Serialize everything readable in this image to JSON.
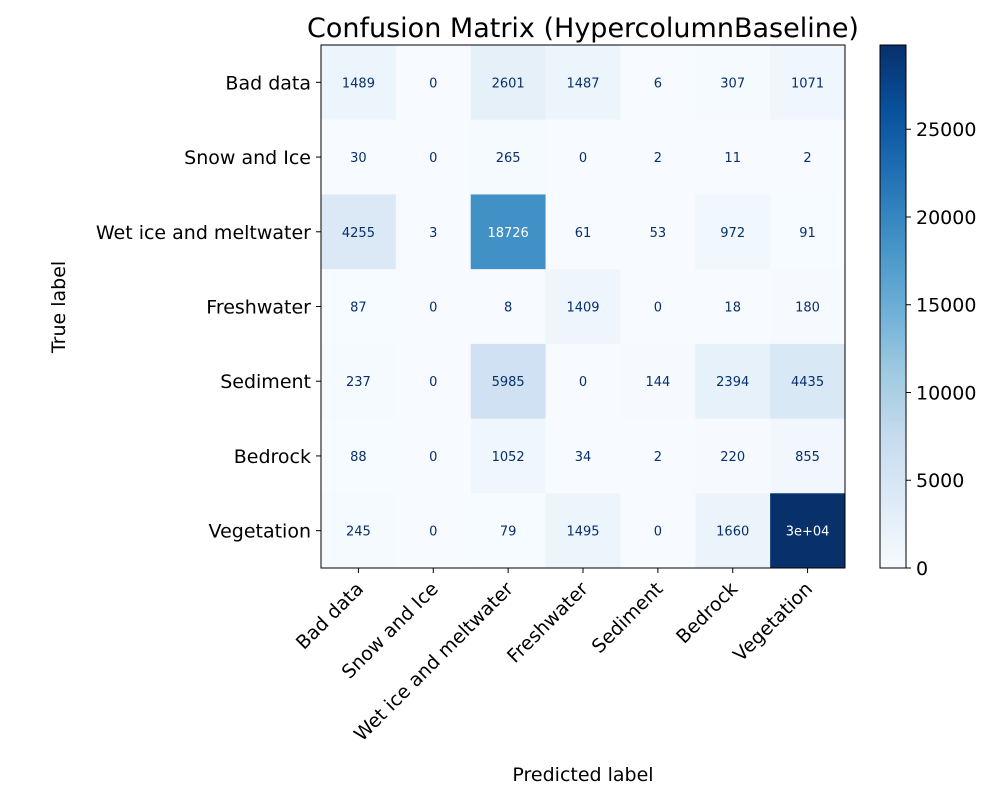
{
  "chart_data": {
    "type": "heatmap",
    "title": "Confusion Matrix (HypercolumnBaseline)",
    "xlabel": "Predicted label",
    "ylabel": "True label",
    "x_categories": [
      "Bad data",
      "Snow and Ice",
      "Wet ice and meltwater",
      "Freshwater",
      "Sediment",
      "Bedrock",
      "Vegetation"
    ],
    "y_categories": [
      "Bad data",
      "Snow and Ice",
      "Wet ice and meltwater",
      "Freshwater",
      "Sediment",
      "Bedrock",
      "Vegetation"
    ],
    "values": [
      [
        1489,
        0,
        2601,
        1487,
        6,
        307,
        1071
      ],
      [
        30,
        0,
        265,
        0,
        2,
        11,
        2
      ],
      [
        4255,
        3,
        18726,
        61,
        53,
        972,
        91
      ],
      [
        87,
        0,
        8,
        1409,
        0,
        18,
        180
      ],
      [
        237,
        0,
        5985,
        0,
        144,
        2394,
        4435
      ],
      [
        88,
        0,
        1052,
        34,
        2,
        220,
        855
      ],
      [
        245,
        0,
        79,
        1495,
        0,
        1660,
        29800
      ]
    ],
    "cell_labels": [
      [
        "1489",
        "0",
        "2601",
        "1487",
        "6",
        "307",
        "1071"
      ],
      [
        "30",
        "0",
        "265",
        "0",
        "2",
        "11",
        "2"
      ],
      [
        "4255",
        "3",
        "18726",
        "61",
        "53",
        "972",
        "91"
      ],
      [
        "87",
        "0",
        "8",
        "1409",
        "0",
        "18",
        "180"
      ],
      [
        "237",
        "0",
        "5985",
        "0",
        "144",
        "2394",
        "4435"
      ],
      [
        "88",
        "0",
        "1052",
        "34",
        "2",
        "220",
        "855"
      ],
      [
        "245",
        "0",
        "79",
        "1495",
        "0",
        "1660",
        "3e+04"
      ]
    ],
    "colormap": "Blues",
    "colorbar": {
      "range": [
        0,
        29800
      ],
      "ticks": [
        0,
        5000,
        10000,
        15000,
        20000,
        25000
      ]
    },
    "text_colors": {
      "dark_cell": "#ffffff",
      "light_cell": "#08306b"
    },
    "grid": false
  }
}
